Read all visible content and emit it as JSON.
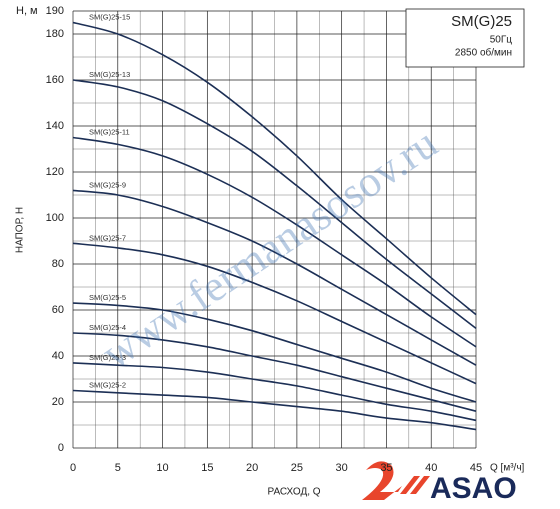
{
  "chart_data": {
    "type": "line",
    "title": "SM(G)25",
    "subtitle_lines": [
      "50Гц",
      "2850 об/мин"
    ],
    "y_label_top": "Н, м",
    "y_label": "НАПОР, Н",
    "x_label": "РАСХОД, Q",
    "x_unit_label": "Q [м³/ч]",
    "watermark": "www.fermanasosov.ru",
    "brand": "ASAO",
    "x": [
      0,
      5,
      10,
      15,
      20,
      25,
      30,
      35,
      40,
      45
    ],
    "xlim": [
      0,
      45
    ],
    "xticks": [
      0,
      5,
      10,
      15,
      20,
      25,
      30,
      35,
      40,
      45
    ],
    "ylim": [
      0,
      190
    ],
    "yticks": [
      0,
      20,
      40,
      60,
      80,
      100,
      120,
      140,
      160,
      180,
      190
    ],
    "grid": true,
    "series": [
      {
        "name": "SM(G)25-15",
        "color": "#1c2f55",
        "values": [
          185,
          180,
          171,
          159,
          144,
          127,
          108,
          91,
          74,
          58
        ]
      },
      {
        "name": "SM(G)25-13",
        "color": "#1c2f55",
        "values": [
          160,
          157,
          151,
          141,
          129,
          114,
          98,
          82,
          67,
          52
        ]
      },
      {
        "name": "SM(G)25-11",
        "color": "#1c2f55",
        "values": [
          135,
          132,
          127,
          119,
          109,
          97,
          84,
          71,
          57,
          44
        ]
      },
      {
        "name": "SM(G)25-9",
        "color": "#1c2f55",
        "values": [
          112,
          110,
          105,
          98,
          90,
          80,
          69,
          58,
          47,
          36
        ]
      },
      {
        "name": "SM(G)25-7",
        "color": "#1c2f55",
        "values": [
          89,
          87,
          84,
          79,
          72,
          64,
          55,
          46,
          37,
          28
        ]
      },
      {
        "name": "SM(G)25-5",
        "color": "#1c2f55",
        "values": [
          63,
          62,
          60,
          56,
          51,
          45,
          39,
          33,
          26,
          20
        ]
      },
      {
        "name": "SM(G)25-4",
        "color": "#1c2f55",
        "values": [
          50,
          49,
          47,
          44,
          40,
          36,
          31,
          26,
          21,
          16
        ]
      },
      {
        "name": "SM(G)25-3",
        "color": "#1c2f55",
        "values": [
          37,
          36,
          35,
          33,
          30,
          27,
          23,
          19,
          16,
          12
        ]
      },
      {
        "name": "SM(G)25-2",
        "color": "#1c2f55",
        "values": [
          25,
          24,
          23,
          22,
          20,
          18,
          16,
          13,
          11,
          8
        ]
      }
    ]
  }
}
